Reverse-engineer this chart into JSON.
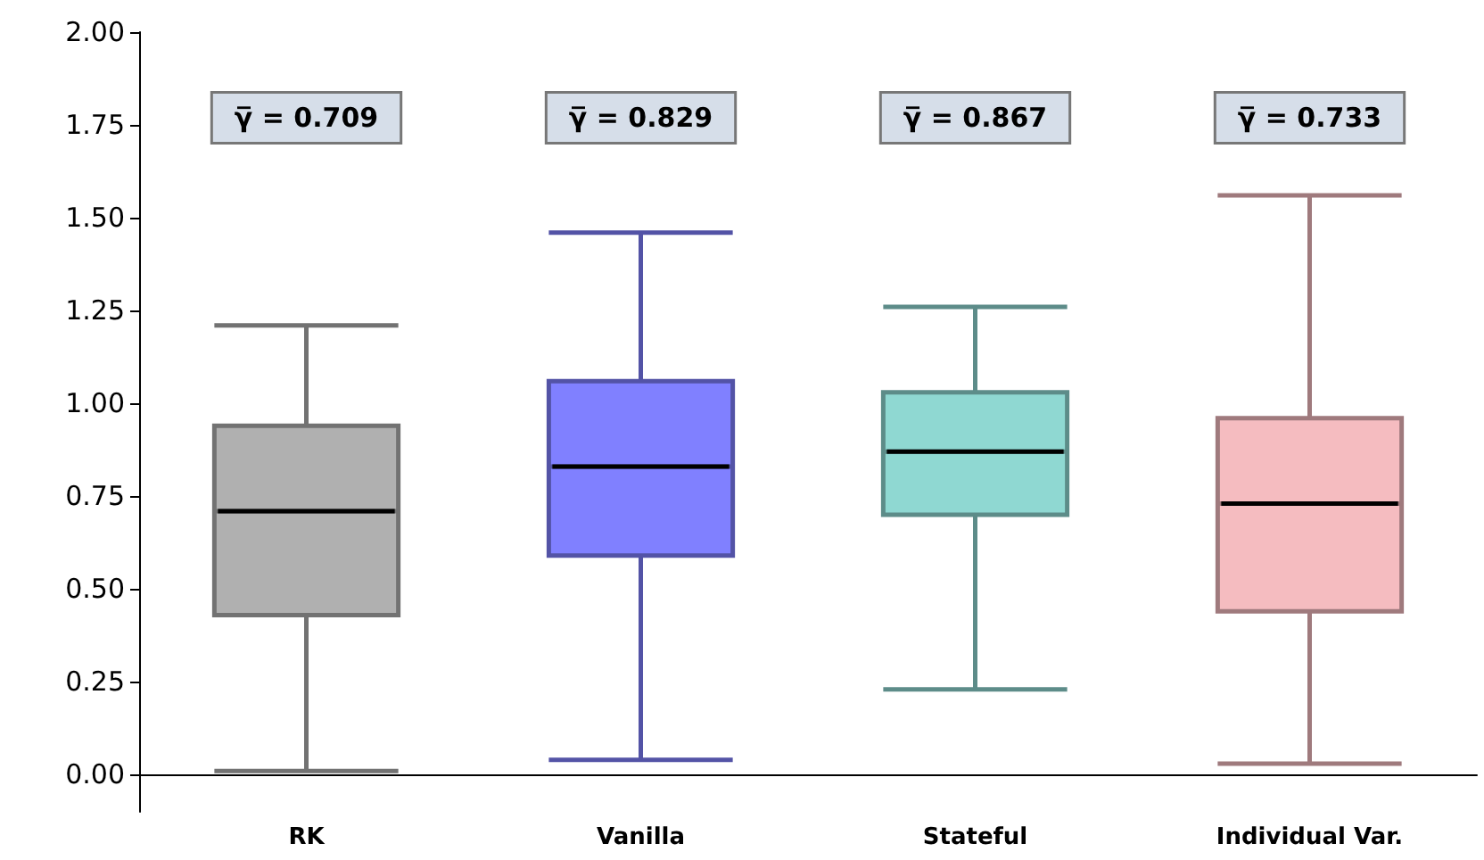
{
  "chart_data": {
    "type": "box",
    "categories": [
      "RK",
      "Vanilla",
      "Stateful",
      "Individual Var."
    ],
    "colors": [
      "#b0b0b0",
      "#8080ff",
      "#8fd8d2",
      "#f5bcc0"
    ],
    "boxes": [
      {
        "low": 0.01,
        "q1": 0.43,
        "median": 0.71,
        "q3": 0.94,
        "high": 1.21
      },
      {
        "low": 0.04,
        "q1": 0.59,
        "median": 0.83,
        "q3": 1.06,
        "high": 1.46
      },
      {
        "low": 0.23,
        "q1": 0.7,
        "median": 0.87,
        "q3": 1.03,
        "high": 1.26
      },
      {
        "low": 0.03,
        "q1": 0.44,
        "median": 0.73,
        "q3": 0.96,
        "high": 1.56
      }
    ],
    "annotations": [
      "γ̅ = 0.709",
      "γ̅ = 0.829",
      "γ̅ = 0.867",
      "γ̅ = 0.733"
    ],
    "ylim": [
      -0.1,
      2.0
    ],
    "yticks": [
      {
        "value": 0,
        "label": "0.00"
      },
      {
        "value": 0.25,
        "label": "0.25"
      },
      {
        "value": 0.5,
        "label": "0.50"
      },
      {
        "value": 0.75,
        "label": "0.75"
      },
      {
        "value": 1,
        "label": "1.00"
      },
      {
        "value": 1.25,
        "label": "1.25"
      },
      {
        "value": 1.5,
        "label": "1.50"
      },
      {
        "value": 1.75,
        "label": "1.75"
      },
      {
        "value": 2,
        "label": "2.00"
      }
    ],
    "grid": false
  }
}
